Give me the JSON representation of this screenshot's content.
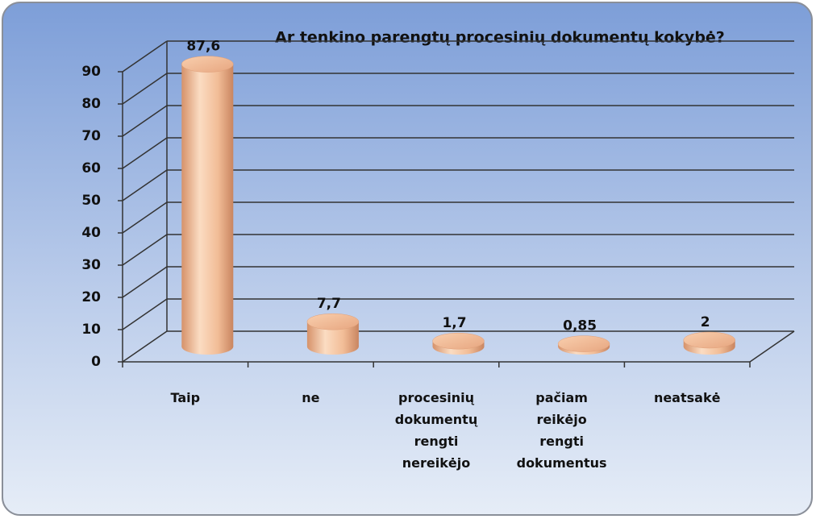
{
  "chart_data": {
    "type": "bar3d",
    "title": "Ar tenkino parengtų procesinių dokumentų kokybė?",
    "categories": [
      "Taip",
      "ne",
      "procesinių dokumentų rengti nereikėjo",
      "pačiam reikėjo rengti dokumentus",
      "neatsakė"
    ],
    "values": [
      87.6,
      7.7,
      1.7,
      0.85,
      2
    ],
    "value_labels": [
      "87,6",
      "7,7",
      "1,7",
      "0,85",
      "2"
    ],
    "color": "#f2c09c",
    "ylim": [
      0,
      90
    ],
    "yticks": [
      0,
      10,
      20,
      30,
      40,
      50,
      60,
      70,
      80,
      90
    ],
    "grid": true
  }
}
